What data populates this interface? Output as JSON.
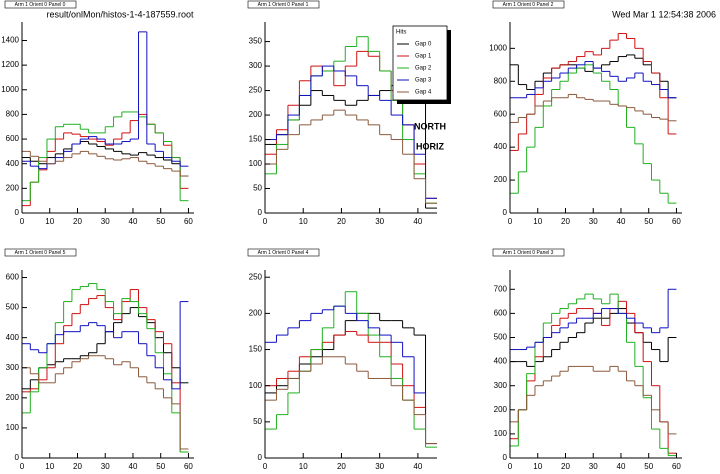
{
  "file": "result/onlMon/histos-1-4-187559.root",
  "timestamp": "Wed Mar  1 12:54:38 2006",
  "chart_data": [
    {
      "type": "histogram",
      "title": "Arm 1 Orient 0 Panel 0",
      "bins": [
        0,
        3,
        6,
        9,
        12,
        15,
        18,
        21,
        24,
        27,
        30,
        33,
        36,
        39,
        42,
        45,
        48,
        51,
        54,
        57,
        60
      ],
      "xlim": [
        0,
        62
      ],
      "ylim": [
        0,
        1550
      ],
      "xticks": [
        0,
        10,
        20,
        30,
        40,
        50,
        60
      ],
      "yticks": [
        0,
        200,
        400,
        600,
        800,
        1000,
        1200,
        1400
      ],
      "series": [
        {
          "color": "#000000",
          "values": [
            450,
            420,
            400,
            450,
            480,
            520,
            560,
            580,
            560,
            540,
            520,
            500,
            480,
            470,
            490,
            470,
            450,
            430,
            400,
            300
          ]
        },
        {
          "color": "#d01010",
          "values": [
            60,
            250,
            350,
            500,
            600,
            650,
            640,
            620,
            600,
            580,
            550,
            600,
            650,
            750,
            800,
            720,
            650,
            550,
            450,
            200
          ]
        },
        {
          "color": "#20b020",
          "values": [
            100,
            250,
            450,
            600,
            700,
            720,
            720,
            680,
            650,
            650,
            700,
            780,
            820,
            820,
            780,
            720,
            650,
            580,
            450,
            100
          ]
        },
        {
          "color": "#1010c0",
          "values": [
            420,
            380,
            360,
            400,
            450,
            500,
            560,
            600,
            620,
            600,
            560,
            560,
            580,
            600,
            1470,
            560,
            500,
            450,
            420,
            380
          ]
        },
        {
          "color": "#8b5a3c",
          "values": [
            500,
            460,
            420,
            400,
            420,
            450,
            480,
            500,
            480,
            460,
            440,
            430,
            440,
            450,
            420,
            400,
            380,
            360,
            340,
            300
          ]
        }
      ]
    },
    {
      "type": "histogram",
      "title": "Arm 1 Orient 0 Panel 1",
      "bins": [
        0,
        3,
        6,
        9,
        12,
        15,
        18,
        21,
        24,
        27,
        30,
        33,
        36,
        39,
        42,
        45
      ],
      "xlim": [
        0,
        45
      ],
      "ylim": [
        0,
        390
      ],
      "xticks": [
        0,
        10,
        20,
        30,
        40
      ],
      "yticks": [
        0,
        50,
        100,
        150,
        200,
        250,
        300,
        350
      ],
      "legend_title": "Hits",
      "annotations": [
        "NORTH",
        "HORIZ"
      ],
      "series": [
        {
          "name": "Gap 0",
          "color": "#000000",
          "values": [
            140,
            160,
            190,
            220,
            250,
            240,
            230,
            220,
            230,
            240,
            250,
            260,
            255,
            250,
            10
          ]
        },
        {
          "name": "Gap 1",
          "color": "#d01010",
          "values": [
            120,
            170,
            220,
            270,
            300,
            290,
            260,
            300,
            330,
            320,
            290,
            250,
            180,
            100,
            30
          ]
        },
        {
          "name": "Gap 2",
          "color": "#20b020",
          "values": [
            80,
            140,
            190,
            240,
            280,
            290,
            310,
            340,
            360,
            330,
            290,
            230,
            150,
            80,
            20
          ]
        },
        {
          "name": "Gap 3",
          "color": "#1010c0",
          "values": [
            150,
            160,
            200,
            240,
            280,
            300,
            290,
            280,
            260,
            240,
            230,
            200,
            180,
            120,
            30
          ]
        },
        {
          "name": "Gap 4",
          "color": "#8b5a3c",
          "values": [
            100,
            130,
            160,
            180,
            190,
            200,
            210,
            200,
            190,
            180,
            160,
            150,
            120,
            70,
            20
          ]
        }
      ]
    },
    {
      "type": "histogram",
      "title": "Arm 1 Orient 0 Panel 2",
      "bins": [
        0,
        3,
        6,
        9,
        12,
        15,
        18,
        21,
        24,
        27,
        30,
        33,
        36,
        39,
        42,
        45,
        48,
        51,
        54,
        57,
        60
      ],
      "xlim": [
        0,
        62
      ],
      "ylim": [
        0,
        1160
      ],
      "xticks": [
        0,
        10,
        20,
        30,
        40,
        50,
        60
      ],
      "yticks": [
        0,
        200,
        400,
        600,
        800,
        1000
      ],
      "series": [
        {
          "color": "#000000",
          "values": [
            900,
            780,
            750,
            800,
            850,
            880,
            900,
            900,
            880,
            860,
            880,
            900,
            920,
            950,
            960,
            940,
            900,
            850,
            800,
            700
          ]
        },
        {
          "color": "#d01010",
          "values": [
            380,
            480,
            600,
            720,
            820,
            880,
            900,
            920,
            950,
            980,
            960,
            1000,
            1050,
            1090,
            1060,
            1000,
            920,
            850,
            700,
            480
          ]
        },
        {
          "color": "#20b020",
          "values": [
            120,
            250,
            400,
            520,
            650,
            750,
            800,
            850,
            880,
            900,
            850,
            800,
            750,
            650,
            520,
            420,
            300,
            200,
            120,
            60
          ]
        },
        {
          "color": "#1010c0",
          "values": [
            700,
            700,
            720,
            760,
            800,
            820,
            850,
            880,
            900,
            920,
            880,
            860,
            830,
            800,
            820,
            850,
            800,
            780,
            750,
            700
          ]
        },
        {
          "color": "#8b5a3c",
          "values": [
            550,
            580,
            600,
            650,
            680,
            700,
            700,
            720,
            700,
            690,
            680,
            680,
            660,
            650,
            640,
            620,
            600,
            580,
            570,
            560
          ]
        }
      ]
    },
    {
      "type": "histogram",
      "title": "Arm 1 Orient 0 Panel 5",
      "bins": [
        0,
        3,
        6,
        9,
        12,
        15,
        18,
        21,
        24,
        27,
        30,
        33,
        36,
        39,
        42,
        45,
        48,
        51,
        54,
        57,
        60
      ],
      "xlim": [
        0,
        62
      ],
      "ylim": [
        0,
        625
      ],
      "xticks": [
        0,
        10,
        20,
        30,
        40,
        50,
        60
      ],
      "yticks": [
        0,
        100,
        200,
        300,
        400,
        500,
        600
      ],
      "series": [
        {
          "color": "#000000",
          "values": [
            230,
            260,
            300,
            310,
            320,
            330,
            330,
            340,
            350,
            380,
            420,
            450,
            480,
            500,
            470,
            450,
            400,
            350,
            300,
            250
          ]
        },
        {
          "color": "#d01010",
          "values": [
            220,
            230,
            260,
            300,
            380,
            440,
            480,
            510,
            530,
            540,
            500,
            460,
            520,
            560,
            500,
            460,
            420,
            380,
            250,
            20
          ]
        },
        {
          "color": "#20b020",
          "values": [
            150,
            220,
            300,
            380,
            450,
            520,
            560,
            570,
            580,
            560,
            520,
            480,
            530,
            520,
            480,
            430,
            350,
            280,
            150,
            20
          ]
        },
        {
          "color": "#1010c0",
          "values": [
            380,
            360,
            350,
            380,
            410,
            420,
            420,
            440,
            450,
            440,
            420,
            400,
            420,
            420,
            380,
            340,
            300,
            260,
            230,
            520
          ]
        },
        {
          "color": "#8b5a3c",
          "values": [
            300,
            280,
            250,
            250,
            280,
            300,
            320,
            330,
            340,
            340,
            330,
            310,
            320,
            300,
            270,
            250,
            230,
            200,
            180,
            30
          ]
        }
      ]
    },
    {
      "type": "histogram",
      "title": "Arm 1 Orient 0 Panel 4",
      "bins": [
        0,
        3,
        6,
        9,
        12,
        15,
        18,
        21,
        24,
        27,
        30,
        33,
        36,
        39,
        42,
        45
      ],
      "xlim": [
        0,
        45
      ],
      "ylim": [
        0,
        260
      ],
      "xticks": [
        0,
        10,
        20,
        30,
        40
      ],
      "yticks": [
        0,
        50,
        100,
        150,
        200,
        250
      ],
      "series": [
        {
          "color": "#000000",
          "values": [
            90,
            100,
            110,
            130,
            140,
            150,
            170,
            190,
            200,
            200,
            190,
            190,
            180,
            170,
            20
          ]
        },
        {
          "color": "#d01010",
          "values": [
            100,
            110,
            120,
            140,
            150,
            160,
            170,
            175,
            170,
            160,
            160,
            130,
            100,
            70,
            20
          ]
        },
        {
          "color": "#20b020",
          "values": [
            40,
            60,
            90,
            120,
            150,
            180,
            210,
            230,
            200,
            170,
            140,
            110,
            80,
            40,
            15
          ]
        },
        {
          "color": "#1010c0",
          "values": [
            160,
            170,
            180,
            190,
            200,
            205,
            210,
            200,
            190,
            180,
            170,
            160,
            140,
            90,
            20
          ]
        },
        {
          "color": "#8b5a3c",
          "values": [
            80,
            95,
            110,
            120,
            130,
            140,
            140,
            130,
            120,
            110,
            110,
            100,
            80,
            60,
            20
          ]
        }
      ]
    },
    {
      "type": "histogram",
      "title": "Arm 1 Orient 0 Panel 3",
      "bins": [
        0,
        3,
        6,
        9,
        12,
        15,
        18,
        21,
        24,
        27,
        30,
        33,
        36,
        39,
        42,
        45,
        48,
        51,
        54,
        57,
        60
      ],
      "xlim": [
        0,
        62
      ],
      "ylim": [
        0,
        780
      ],
      "xticks": [
        0,
        10,
        20,
        30,
        40,
        50,
        60
      ],
      "yticks": [
        0,
        100,
        200,
        300,
        400,
        500,
        600,
        700
      ],
      "series": [
        {
          "color": "#000000",
          "values": [
            400,
            400,
            380,
            400,
            420,
            450,
            480,
            500,
            520,
            560,
            580,
            580,
            600,
            620,
            560,
            520,
            480,
            450,
            400,
            500
          ]
        },
        {
          "color": "#d01010",
          "values": [
            80,
            200,
            320,
            420,
            500,
            550,
            580,
            600,
            620,
            620,
            600,
            550,
            620,
            650,
            600,
            520,
            400,
            300,
            150,
            20
          ]
        },
        {
          "color": "#20b020",
          "values": [
            50,
            200,
            350,
            480,
            560,
            600,
            620,
            640,
            660,
            680,
            660,
            640,
            680,
            600,
            480,
            380,
            250,
            120,
            40,
            10
          ]
        },
        {
          "color": "#1010c0",
          "values": [
            450,
            450,
            460,
            480,
            500,
            520,
            540,
            560,
            580,
            580,
            600,
            620,
            620,
            600,
            580,
            560,
            540,
            520,
            540,
            700
          ]
        },
        {
          "color": "#8b5a3c",
          "values": [
            150,
            200,
            260,
            300,
            320,
            340,
            360,
            380,
            380,
            380,
            360,
            360,
            380,
            360,
            320,
            300,
            260,
            200,
            150,
            100
          ]
        }
      ]
    }
  ]
}
